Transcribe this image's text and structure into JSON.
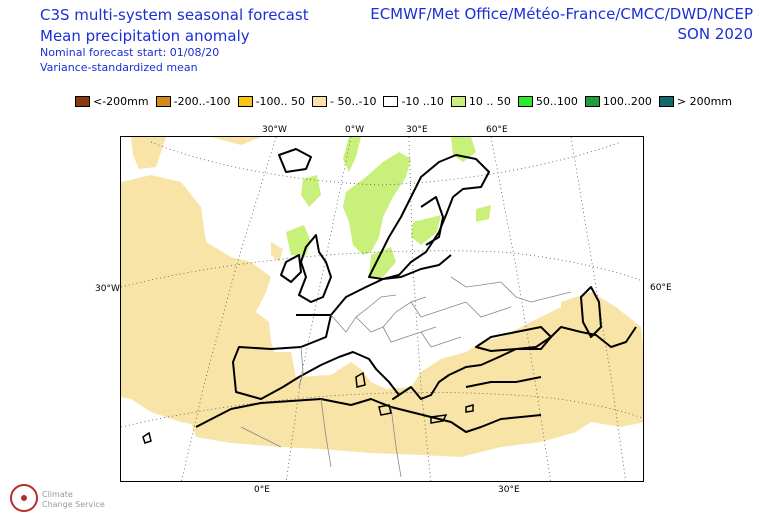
{
  "header": {
    "title_line1": "C3S multi-system seasonal forecast",
    "title_line2": "Mean precipitation anomaly",
    "subtitle_line1": "Nominal forecast start: 01/08/20",
    "subtitle_line2": "Variance-standardized mean",
    "centres": "ECMWF/Met Office/Météo-France/CMCC/DWD/NCEP",
    "season": "SON 2020"
  },
  "legend": {
    "items": [
      {
        "label": "<-200mm",
        "color": "#8b3a0f"
      },
      {
        "label": "-200..-100",
        "color": "#d28b1a"
      },
      {
        "label": "-100.. 50",
        "color": "#f5c518"
      },
      {
        "label": "- 50..-10",
        "color": "#f8e4a6"
      },
      {
        "label": "-10 ..10",
        "color": "#ffffff"
      },
      {
        "label": "10 .. 50",
        "color": "#c9f07a"
      },
      {
        "label": "50..100",
        "color": "#2ee82e"
      },
      {
        "label": "100..200",
        "color": "#1c9e3c"
      },
      {
        "label": "> 200mm",
        "color": "#0f6b6b"
      }
    ]
  },
  "map": {
    "ticks": {
      "top_30w": "30°W",
      "top_0e": "0°W",
      "top_30e": "30°E",
      "top_60e": "60°E",
      "left_30w": "30°W",
      "right_60e": "60°E",
      "bottom_0e": "0°E",
      "bottom_30e": "30°E"
    },
    "colors": {
      "dry": "#f8e4a6",
      "wet": "#c9f07a",
      "coast": "#000000",
      "border": "#888888",
      "grid": "#555555"
    }
  },
  "logo": {
    "line1": "Climate",
    "line2": "Change Service"
  }
}
